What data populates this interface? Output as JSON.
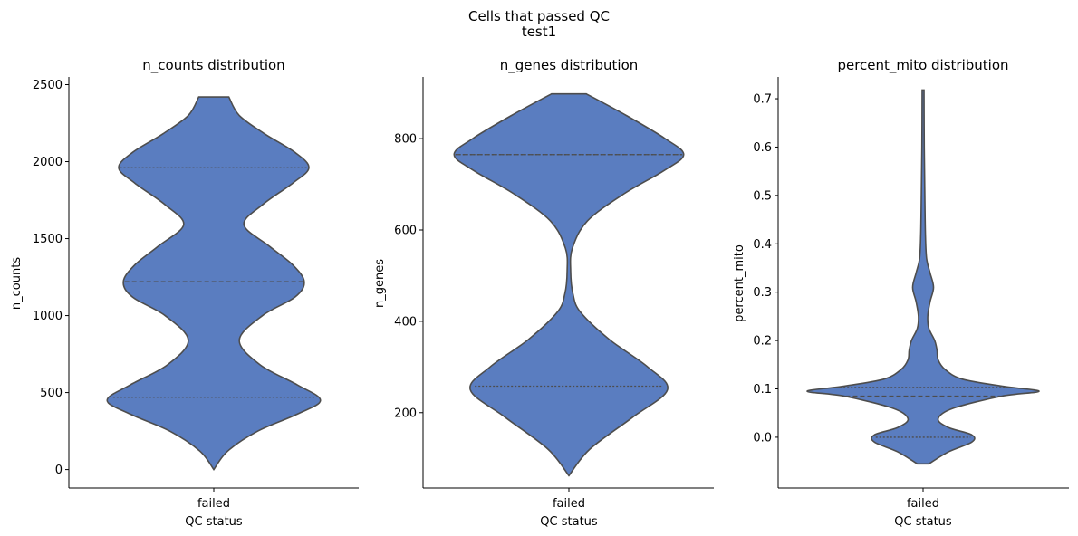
{
  "figure": {
    "suptitle_line1": "Cells that passed QC",
    "suptitle_line2": "test1",
    "violin_color": "#5a7dc0",
    "edge_color": "#4d4d4d"
  },
  "chart_data": [
    {
      "type": "violin",
      "title": "n_counts distribution",
      "xlabel": "QC status",
      "ylabel": "n_counts",
      "categories": [
        "failed"
      ],
      "ylim": [
        -120,
        2550
      ],
      "yticks": [
        0,
        500,
        1000,
        1500,
        2000,
        2500
      ],
      "value_range": [
        0,
        2420
      ],
      "quartiles": [
        470,
        1220,
        1960
      ],
      "quartile_styles": [
        "dotted",
        "dashed",
        "dotted"
      ],
      "density": [
        [
          0,
          0.0
        ],
        [
          120,
          0.12
        ],
        [
          250,
          0.38
        ],
        [
          360,
          0.72
        ],
        [
          450,
          0.92
        ],
        [
          550,
          0.72
        ],
        [
          680,
          0.4
        ],
        [
          840,
          0.22
        ],
        [
          1000,
          0.42
        ],
        [
          1120,
          0.7
        ],
        [
          1220,
          0.78
        ],
        [
          1330,
          0.68
        ],
        [
          1450,
          0.48
        ],
        [
          1590,
          0.26
        ],
        [
          1720,
          0.42
        ],
        [
          1860,
          0.68
        ],
        [
          1960,
          0.82
        ],
        [
          2060,
          0.7
        ],
        [
          2180,
          0.44
        ],
        [
          2300,
          0.22
        ],
        [
          2420,
          0.13
        ]
      ]
    },
    {
      "type": "violin",
      "title": "n_genes distribution",
      "xlabel": "QC status",
      "ylabel": "n_genes",
      "categories": [
        "failed"
      ],
      "ylim": [
        35,
        935
      ],
      "yticks": [
        200,
        400,
        600,
        800
      ],
      "value_range": [
        62,
        898
      ],
      "quartiles": [
        258,
        765,
        765
      ],
      "quartile_styles": [
        "dotted",
        "dashed",
        "dotted"
      ],
      "density": [
        [
          62,
          0.0
        ],
        [
          120,
          0.18
        ],
        [
          190,
          0.55
        ],
        [
          250,
          0.85
        ],
        [
          300,
          0.68
        ],
        [
          360,
          0.35
        ],
        [
          420,
          0.1
        ],
        [
          460,
          0.035
        ],
        [
          510,
          0.015
        ],
        [
          560,
          0.03
        ],
        [
          620,
          0.16
        ],
        [
          680,
          0.48
        ],
        [
          730,
          0.82
        ],
        [
          765,
          0.99
        ],
        [
          800,
          0.83
        ],
        [
          850,
          0.5
        ],
        [
          898,
          0.15
        ]
      ]
    },
    {
      "type": "violin",
      "title": "percent_mito distribution",
      "xlabel": "QC status",
      "ylabel": "percent_mito",
      "categories": [
        "failed"
      ],
      "ylim": [
        -0.105,
        0.745
      ],
      "yticks": [
        0.0,
        0.1,
        0.2,
        0.3,
        0.4,
        0.5,
        0.6,
        0.7
      ],
      "value_range": [
        -0.055,
        0.718
      ],
      "quartiles": [
        0.0,
        0.085,
        0.103
      ],
      "quartile_styles": [
        "dotted",
        "dashed",
        "dotted"
      ],
      "density": [
        [
          -0.055,
          0.05
        ],
        [
          -0.03,
          0.22
        ],
        [
          -0.01,
          0.42
        ],
        [
          0.005,
          0.42
        ],
        [
          0.02,
          0.22
        ],
        [
          0.038,
          0.13
        ],
        [
          0.06,
          0.26
        ],
        [
          0.085,
          0.68
        ],
        [
          0.095,
          1.0
        ],
        [
          0.105,
          0.7
        ],
        [
          0.12,
          0.34
        ],
        [
          0.14,
          0.19
        ],
        [
          0.16,
          0.13
        ],
        [
          0.18,
          0.12
        ],
        [
          0.2,
          0.1
        ],
        [
          0.225,
          0.05
        ],
        [
          0.25,
          0.04
        ],
        [
          0.28,
          0.06
        ],
        [
          0.31,
          0.09
        ],
        [
          0.34,
          0.06
        ],
        [
          0.37,
          0.03
        ],
        [
          0.42,
          0.02
        ],
        [
          0.5,
          0.015
        ],
        [
          0.6,
          0.01
        ],
        [
          0.718,
          0.008
        ]
      ]
    }
  ]
}
